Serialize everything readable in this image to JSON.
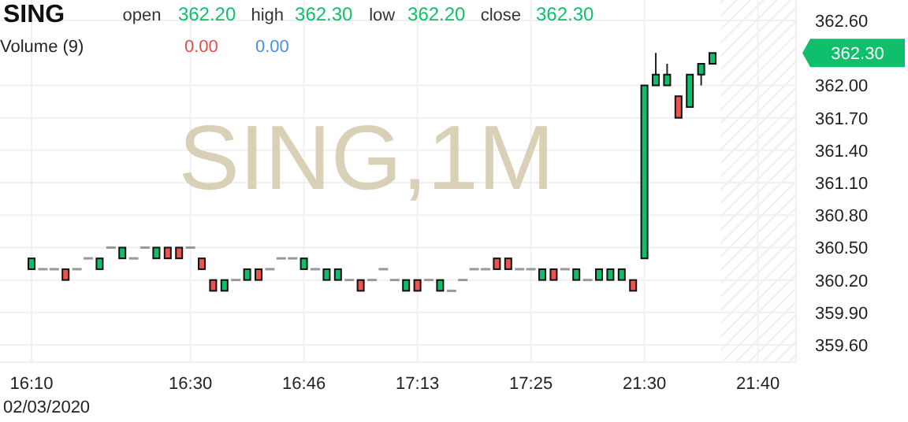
{
  "chart_data": {
    "type": "candlestick",
    "title": "SING",
    "categories": [
      "16:10",
      null,
      null,
      null,
      null,
      null,
      null,
      null,
      null,
      null,
      null,
      null,
      null,
      null,
      "16:30",
      null,
      null,
      null,
      null,
      null,
      null,
      null,
      null,
      null,
      "16:46",
      null,
      null,
      null,
      null,
      null,
      null,
      null,
      null,
      null,
      "17:13",
      null,
      null,
      null,
      null,
      null,
      null,
      null,
      null,
      null,
      "17:25",
      null,
      null,
      null,
      null,
      null,
      null,
      null,
      null,
      null,
      "21:30",
      null,
      null,
      null,
      null,
      null,
      null,
      null,
      null,
      null,
      "21:40"
    ],
    "ohlc": [
      [
        360.3,
        360.4,
        360.3,
        360.4
      ],
      [
        360.3,
        360.3,
        360.3,
        360.3
      ],
      [
        360.3,
        360.3,
        360.3,
        360.3
      ],
      [
        360.3,
        360.3,
        360.2,
        360.2
      ],
      [
        360.3,
        360.3,
        360.3,
        360.3
      ],
      [
        360.4,
        360.4,
        360.4,
        360.4
      ],
      [
        360.3,
        360.4,
        360.3,
        360.4
      ],
      [
        360.5,
        360.5,
        360.5,
        360.5
      ],
      [
        360.4,
        360.5,
        360.4,
        360.5
      ],
      [
        360.4,
        360.4,
        360.4,
        360.4
      ],
      [
        360.5,
        360.5,
        360.5,
        360.5
      ],
      [
        360.4,
        360.5,
        360.4,
        360.5
      ],
      [
        360.5,
        360.5,
        360.4,
        360.4
      ],
      [
        360.5,
        360.5,
        360.4,
        360.4
      ],
      [
        360.5,
        360.5,
        360.5,
        360.5
      ],
      [
        360.4,
        360.4,
        360.3,
        360.3
      ],
      [
        360.2,
        360.2,
        360.1,
        360.1
      ],
      [
        360.1,
        360.2,
        360.1,
        360.2
      ],
      [
        360.2,
        360.2,
        360.2,
        360.2
      ],
      [
        360.2,
        360.3,
        360.2,
        360.3
      ],
      [
        360.3,
        360.3,
        360.2,
        360.2
      ],
      [
        360.3,
        360.3,
        360.3,
        360.3
      ],
      [
        360.4,
        360.4,
        360.4,
        360.4
      ],
      [
        360.4,
        360.4,
        360.4,
        360.4
      ],
      [
        360.3,
        360.4,
        360.3,
        360.4
      ],
      [
        360.3,
        360.3,
        360.3,
        360.3
      ],
      [
        360.2,
        360.3,
        360.2,
        360.3
      ],
      [
        360.2,
        360.3,
        360.2,
        360.3
      ],
      [
        360.2,
        360.2,
        360.2,
        360.2
      ],
      [
        360.2,
        360.2,
        360.1,
        360.1
      ],
      [
        360.2,
        360.2,
        360.2,
        360.2
      ],
      [
        360.3,
        360.3,
        360.3,
        360.3
      ],
      [
        360.2,
        360.2,
        360.2,
        360.2
      ],
      [
        360.1,
        360.2,
        360.1,
        360.2
      ],
      [
        360.2,
        360.2,
        360.1,
        360.1
      ],
      [
        360.2,
        360.2,
        360.2,
        360.2
      ],
      [
        360.1,
        360.2,
        360.1,
        360.2
      ],
      [
        360.1,
        360.1,
        360.1,
        360.1
      ],
      [
        360.2,
        360.2,
        360.2,
        360.2
      ],
      [
        360.3,
        360.3,
        360.3,
        360.3
      ],
      [
        360.3,
        360.3,
        360.3,
        360.3
      ],
      [
        360.4,
        360.4,
        360.3,
        360.3
      ],
      [
        360.4,
        360.4,
        360.3,
        360.3
      ],
      [
        360.3,
        360.3,
        360.3,
        360.3
      ],
      [
        360.3,
        360.3,
        360.3,
        360.3
      ],
      [
        360.2,
        360.3,
        360.2,
        360.3
      ],
      [
        360.3,
        360.3,
        360.2,
        360.2
      ],
      [
        360.3,
        360.3,
        360.3,
        360.3
      ],
      [
        360.2,
        360.3,
        360.2,
        360.3
      ],
      [
        360.2,
        360.2,
        360.2,
        360.2
      ],
      [
        360.2,
        360.3,
        360.2,
        360.3
      ],
      [
        360.2,
        360.3,
        360.2,
        360.3
      ],
      [
        360.2,
        360.3,
        360.2,
        360.3
      ],
      [
        360.2,
        360.2,
        360.1,
        360.1
      ],
      [
        360.4,
        362.0,
        360.4,
        362.0
      ],
      [
        362.0,
        362.3,
        362.0,
        362.1
      ],
      [
        362.0,
        362.2,
        362.0,
        362.1
      ],
      [
        361.9,
        361.9,
        361.7,
        361.7
      ],
      [
        361.8,
        362.1,
        361.8,
        362.1
      ],
      [
        362.1,
        362.2,
        362.0,
        362.2
      ],
      [
        362.2,
        362.3,
        362.2,
        362.3
      ],
      null,
      null,
      null,
      null
    ],
    "colors": [
      "#0fbf6b",
      "#999999",
      "#999999",
      "#ef5350",
      "#999999",
      "#999999",
      "#0fbf6b",
      "#999999",
      "#0fbf6b",
      "#999999",
      "#999999",
      "#0fbf6b",
      "#ef5350",
      "#ef5350",
      "#999999",
      "#ef5350",
      "#ef5350",
      "#0fbf6b",
      "#999999",
      "#0fbf6b",
      "#ef5350",
      "#999999",
      "#999999",
      "#999999",
      "#0fbf6b",
      "#999999",
      "#0fbf6b",
      "#0fbf6b",
      "#999999",
      "#ef5350",
      "#999999",
      "#999999",
      "#999999",
      "#0fbf6b",
      "#ef5350",
      "#999999",
      "#0fbf6b",
      "#999999",
      "#999999",
      "#999999",
      "#999999",
      "#ef5350",
      "#ef5350",
      "#999999",
      "#999999",
      "#0fbf6b",
      "#ef5350",
      "#999999",
      "#0fbf6b",
      "#999999",
      "#0fbf6b",
      "#0fbf6b",
      "#0fbf6b",
      "#ef5350",
      "#0fbf6b",
      "#0fbf6b",
      "#0fbf6b",
      "#ef5350",
      "#0fbf6b",
      "#0fbf6b",
      "#0fbf6b",
      null,
      null,
      null,
      null
    ],
    "ylim": [
      359.44,
      362.79
    ],
    "yticks": [
      {
        "value": 359.6,
        "label": "359.60"
      },
      {
        "value": 359.9,
        "label": "359.90"
      },
      {
        "value": 360.2,
        "label": "360.20"
      },
      {
        "value": 360.5,
        "label": "360.50"
      },
      {
        "value": 360.8,
        "label": "360.80"
      },
      {
        "value": 361.1,
        "label": "361.10"
      },
      {
        "value": 361.4,
        "label": "361.40"
      },
      {
        "value": 361.7,
        "label": "361.70"
      },
      {
        "value": 362.0,
        "label": "362.00"
      },
      {
        "value": 362.6,
        "label": "362.60"
      }
    ],
    "grid": true,
    "annotations": [
      "open",
      "362.20",
      "high",
      "362.30",
      "low",
      "362.20",
      "close",
      "362.30",
      "Volume (9)",
      "0.00",
      "0.00",
      "02/03/2020",
      "SING,1M",
      "362.30"
    ]
  }
}
